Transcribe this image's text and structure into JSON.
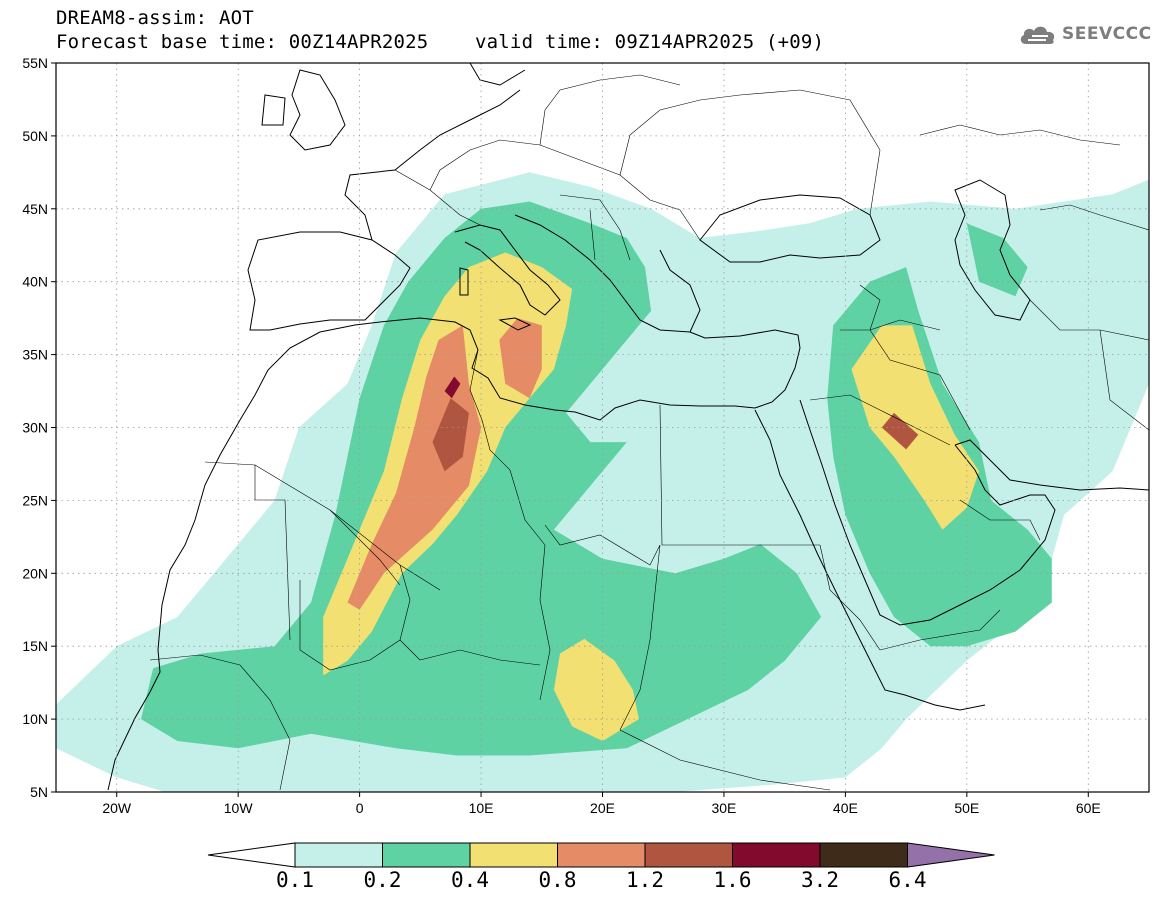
{
  "header": {
    "title": "DREAM8-assim: AOT",
    "base_time_label": "Forecast base time: 00Z14APR2025",
    "valid_time_label": "valid time: 09Z14APR2025 (+09)"
  },
  "logo": {
    "text": "SEEVCCC",
    "icon": "cloud-icon"
  },
  "map": {
    "lon_range": [
      -25,
      65
    ],
    "lat_range": [
      5,
      55
    ],
    "lon_ticks": [
      {
        "value": -20,
        "label": "20W"
      },
      {
        "value": -10,
        "label": "10W"
      },
      {
        "value": 0,
        "label": "0"
      },
      {
        "value": 10,
        "label": "10E"
      },
      {
        "value": 20,
        "label": "20E"
      },
      {
        "value": 30,
        "label": "30E"
      },
      {
        "value": 40,
        "label": "40E"
      },
      {
        "value": 50,
        "label": "50E"
      },
      {
        "value": 60,
        "label": "60E"
      }
    ],
    "lat_ticks": [
      {
        "value": 5,
        "label": "5N"
      },
      {
        "value": 10,
        "label": "10N"
      },
      {
        "value": 15,
        "label": "15N"
      },
      {
        "value": 20,
        "label": "20N"
      },
      {
        "value": 25,
        "label": "25N"
      },
      {
        "value": 30,
        "label": "30N"
      },
      {
        "value": 35,
        "label": "35N"
      },
      {
        "value": 40,
        "label": "40N"
      },
      {
        "value": 45,
        "label": "45N"
      },
      {
        "value": 50,
        "label": "50N"
      },
      {
        "value": 55,
        "label": "55N"
      }
    ],
    "grid": "dotted"
  },
  "colorbar": {
    "labels": [
      "0.1",
      "0.2",
      "0.4",
      "0.8",
      "1.2",
      "1.6",
      "3.2",
      "6.4"
    ],
    "colors": [
      "#ffffff",
      "#c5f0e9",
      "#5fd2a4",
      "#f2e172",
      "#e58b66",
      "#b0553f",
      "#820a2c",
      "#3f2b19",
      "#9471a8"
    ]
  },
  "aot_regions": [
    {
      "level": 0.1,
      "coords": [
        [
          -25,
          8
        ],
        [
          -25,
          11
        ],
        [
          -20,
          15
        ],
        [
          -15,
          17
        ],
        [
          -10,
          22
        ],
        [
          -7,
          25
        ],
        [
          -5,
          30
        ],
        [
          -1,
          33
        ],
        [
          1,
          37
        ],
        [
          3,
          42
        ],
        [
          7,
          46
        ],
        [
          14,
          47.5
        ],
        [
          19,
          46.5
        ],
        [
          24,
          45
        ],
        [
          28,
          43
        ],
        [
          33,
          43.5
        ],
        [
          37,
          44
        ],
        [
          41,
          45
        ],
        [
          47,
          45.5
        ],
        [
          54,
          45
        ],
        [
          62,
          46
        ],
        [
          65,
          47
        ],
        [
          65,
          33
        ],
        [
          62,
          27
        ],
        [
          58,
          24
        ],
        [
          56,
          18
        ],
        [
          50,
          14
        ],
        [
          45,
          10
        ],
        [
          43,
          8
        ],
        [
          40,
          6
        ],
        [
          34,
          5.5
        ],
        [
          26,
          5
        ],
        [
          16,
          5
        ],
        [
          4,
          5
        ],
        [
          -4,
          5
        ],
        [
          -10,
          5
        ],
        [
          -16,
          5
        ],
        [
          -20,
          6
        ]
      ]
    },
    {
      "level": 0.2,
      "coords": [
        [
          -18,
          10
        ],
        [
          -17,
          13.5
        ],
        [
          -13,
          14.5
        ],
        [
          -7,
          15
        ],
        [
          -4,
          18
        ],
        [
          -2,
          24
        ],
        [
          0,
          32
        ],
        [
          2,
          37
        ],
        [
          4,
          40
        ],
        [
          7,
          43
        ],
        [
          10,
          45
        ],
        [
          14,
          45.5
        ],
        [
          19,
          44
        ],
        [
          22,
          43
        ],
        [
          23.5,
          41
        ],
        [
          24,
          38
        ],
        [
          22,
          36
        ],
        [
          20,
          34
        ],
        [
          17,
          31
        ],
        [
          19,
          29
        ],
        [
          22,
          29
        ],
        [
          19,
          26
        ],
        [
          16,
          23
        ],
        [
          20,
          21
        ],
        [
          26,
          20
        ],
        [
          30,
          21
        ],
        [
          33,
          22
        ],
        [
          36,
          20
        ],
        [
          38,
          17
        ],
        [
          35,
          14
        ],
        [
          32,
          12
        ],
        [
          27,
          10
        ],
        [
          22,
          8
        ],
        [
          14,
          7.5
        ],
        [
          8,
          7.5
        ],
        [
          3,
          8
        ],
        [
          -4,
          9
        ],
        [
          -10,
          8
        ],
        [
          -15,
          8.5
        ]
      ]
    },
    {
      "level": 0.2,
      "coords": [
        [
          39,
          37
        ],
        [
          42,
          40
        ],
        [
          45,
          41
        ],
        [
          46,
          38
        ],
        [
          48,
          33
        ],
        [
          51,
          29
        ],
        [
          52,
          25
        ],
        [
          55,
          23
        ],
        [
          57,
          21
        ],
        [
          57,
          18
        ],
        [
          54,
          16
        ],
        [
          50,
          15
        ],
        [
          47,
          15
        ],
        [
          44,
          17
        ],
        [
          42,
          20
        ],
        [
          40,
          24
        ],
        [
          39,
          28
        ],
        [
          38.5,
          32
        ]
      ]
    },
    {
      "level": 0.2,
      "coords": [
        [
          50,
          44
        ],
        [
          53,
          43
        ],
        [
          55,
          41
        ],
        [
          54,
          39
        ],
        [
          51,
          40
        ]
      ]
    },
    {
      "level": 0.4,
      "coords": [
        [
          -3,
          13
        ],
        [
          -3,
          17
        ],
        [
          -2,
          19
        ],
        [
          0,
          23
        ],
        [
          2,
          27
        ],
        [
          3.5,
          32
        ],
        [
          5,
          36
        ],
        [
          7,
          39
        ],
        [
          9,
          41
        ],
        [
          12,
          42
        ],
        [
          15,
          41
        ],
        [
          17.5,
          39.5
        ],
        [
          17,
          37
        ],
        [
          16,
          34
        ],
        [
          14,
          32
        ],
        [
          12,
          30
        ],
        [
          10.5,
          27
        ],
        [
          8,
          24
        ],
        [
          6,
          22
        ],
        [
          3.5,
          20
        ],
        [
          1,
          16
        ],
        [
          -1,
          14
        ]
      ]
    },
    {
      "level": 0.4,
      "coords": [
        [
          16,
          12
        ],
        [
          16.5,
          14.5
        ],
        [
          18.5,
          15.5
        ],
        [
          21,
          14
        ],
        [
          22.5,
          12
        ],
        [
          23,
          10
        ],
        [
          20,
          8.5
        ],
        [
          17.5,
          9.5
        ]
      ]
    },
    {
      "level": 0.4,
      "coords": [
        [
          40.5,
          34
        ],
        [
          43,
          37
        ],
        [
          45.5,
          37
        ],
        [
          47,
          33
        ],
        [
          49,
          29.5
        ],
        [
          51,
          27
        ],
        [
          50,
          24.5
        ],
        [
          48,
          23
        ],
        [
          46.5,
          25
        ],
        [
          44,
          28
        ],
        [
          42,
          30
        ]
      ]
    },
    {
      "level": 0.8,
      "coords": [
        [
          -1,
          18
        ],
        [
          1,
          22
        ],
        [
          3,
          25.5
        ],
        [
          4.5,
          30
        ],
        [
          5.5,
          33.5
        ],
        [
          6.5,
          36
        ],
        [
          8.5,
          37
        ],
        [
          9,
          33
        ],
        [
          10,
          30
        ],
        [
          9,
          26
        ],
        [
          6,
          23
        ],
        [
          4,
          21.5
        ],
        [
          2,
          20
        ],
        [
          0,
          17.5
        ]
      ]
    },
    {
      "level": 0.8,
      "coords": [
        [
          12,
          33
        ],
        [
          11.5,
          36
        ],
        [
          13,
          37.5
        ],
        [
          15,
          37
        ],
        [
          15,
          34
        ],
        [
          14,
          32
        ]
      ]
    },
    {
      "level": 1.2,
      "coords": [
        [
          6,
          29
        ],
        [
          7.5,
          32
        ],
        [
          9,
          31
        ],
        [
          8.5,
          28
        ],
        [
          7,
          27
        ]
      ]
    },
    {
      "level": 1.2,
      "coords": [
        [
          43,
          30
        ],
        [
          44,
          31
        ],
        [
          46,
          29.5
        ],
        [
          45,
          28.5
        ]
      ]
    },
    {
      "level": 1.6,
      "coords": [
        [
          7,
          32.5
        ],
        [
          7.8,
          33.5
        ],
        [
          8.3,
          33
        ],
        [
          7.6,
          32
        ]
      ]
    }
  ]
}
